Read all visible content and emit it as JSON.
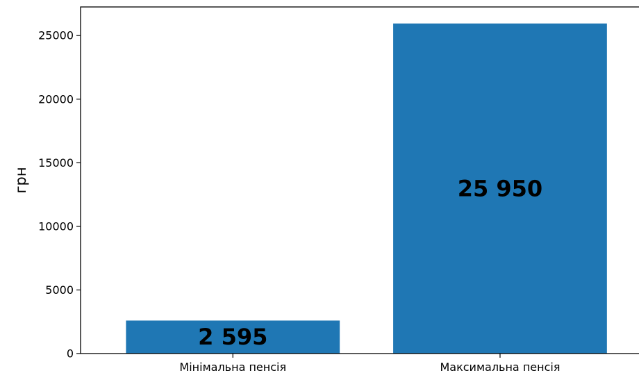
{
  "chart_data": {
    "type": "bar",
    "title": "",
    "xlabel": "",
    "ylabel": "грн",
    "categories": [
      "Мінімальна пенсія",
      "Максимальна пенсія"
    ],
    "values": [
      2595,
      25950
    ],
    "data_labels": [
      "2 595",
      "25 950"
    ],
    "ylim": [
      0,
      27250
    ],
    "yticks": [
      0,
      5000,
      10000,
      15000,
      20000,
      25000
    ],
    "ytick_labels": [
      "0",
      "5000",
      "10000",
      "15000",
      "20000",
      "25000"
    ],
    "bar_color": "#1f77b4",
    "grid": false
  }
}
